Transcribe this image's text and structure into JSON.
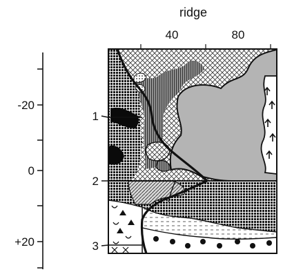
{
  "figure": {
    "top_axis": {
      "title": "ridge",
      "ticks": [
        "40",
        "80"
      ]
    },
    "left_axis": {
      "ticks": [
        "-20",
        "0",
        "+20"
      ]
    },
    "boundaries": [
      "1",
      "2",
      "3"
    ]
  },
  "colors": {
    "ink": "#111111",
    "paper": "#ffffff",
    "gray_fill": "#b4b4b4",
    "dark_fill": "#0a0a0a"
  }
}
